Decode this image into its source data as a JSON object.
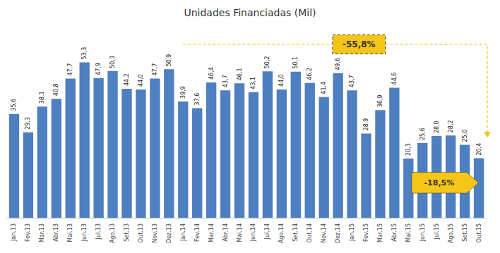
{
  "chart_data": {
    "type": "bar",
    "title": "Unidades Financiadas (Mil)",
    "categories": [
      "Jan.13",
      "Fev.13",
      "Mar.13",
      "Abr.13",
      "Mai.13",
      "Jun.13",
      "Jul.13",
      "Ago.13",
      "Set.13",
      "Out.13",
      "Nov.13",
      "Dez.13",
      "Jan.14",
      "Fev.14",
      "Mar.14",
      "Abr.14",
      "Mai.14",
      "Jun.14",
      "Jul.14",
      "Ago.14",
      "Set.14",
      "Out.14",
      "Nov.14",
      "Dez.14",
      "Jan.15",
      "Fev.15",
      "Mar.15",
      "Abr.15",
      "Mai.15",
      "Jun.15",
      "Jul.15",
      "Ago.15",
      "Set.15",
      "Out.15"
    ],
    "values": [
      35.6,
      29.3,
      38.1,
      40.8,
      47.7,
      53.3,
      47.9,
      50.3,
      44.2,
      44.0,
      47.7,
      50.9,
      39.9,
      37.6,
      46.4,
      43.7,
      46.1,
      43.1,
      50.2,
      44.0,
      50.1,
      46.2,
      41.4,
      49.6,
      43.7,
      28.9,
      36.9,
      44.6,
      20.3,
      25.6,
      28.0,
      28.2,
      25.0,
      20.4
    ],
    "value_labels": [
      "35,6",
      "29,3",
      "38,1",
      "40,8",
      "47,7",
      "53,3",
      "47,9",
      "50,3",
      "44,2",
      "44,0",
      "47,7",
      "50,9",
      "39,9",
      "37,6",
      "46,4",
      "43,7",
      "46,1",
      "43,1",
      "50,2",
      "44,0",
      "50,1",
      "46,2",
      "41,4",
      "49,6",
      "43,7",
      "28,9",
      "36,9",
      "44,6",
      "20,3",
      "25,6",
      "28,0",
      "28,2",
      "25,0",
      "20,4"
    ],
    "data_labels": true,
    "color": "#4E7FC0",
    "ylim": [
      0,
      65
    ],
    "tick_labels": "x",
    "grid": false,
    "annotations": [
      {
        "text": "-55,8%",
        "color": "#F5C518"
      },
      {
        "text": "-18,5%",
        "color": "#F5C518"
      }
    ]
  }
}
